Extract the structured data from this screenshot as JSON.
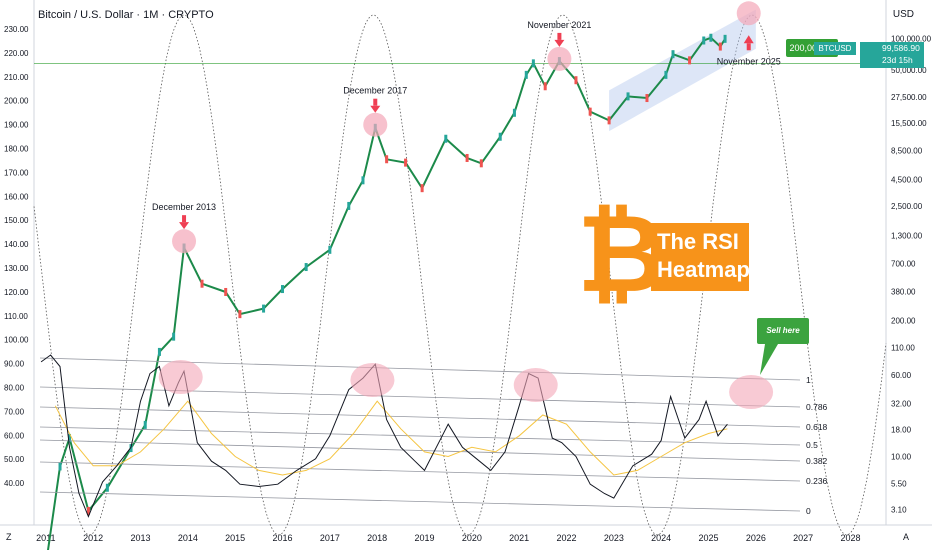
{
  "header": {
    "title": "Bitcoin / U.S. Dollar · 1M · CRYPTO",
    "currency": "USD"
  },
  "brand": {
    "btc_symbol": "₿",
    "title_line1": "The RSI",
    "title_line2": "Heatmap",
    "orange": "#f7931a",
    "green": "#33a035",
    "teal": "#26a69a",
    "pink": "#f4a6b8",
    "red_arrow": "#ef3f53"
  },
  "price_tag": {
    "ticker": "BTCUSD",
    "price": "99,586.90",
    "countdown": "23d 15h"
  },
  "target_label": "200,000.00",
  "callout": "Sell here",
  "footer_left": "Z",
  "footer_right": "A",
  "chart_data": {
    "type": "line",
    "title": "Bitcoin / U.S. Dollar · 1M · CRYPTO",
    "x_ticks": [
      "2011",
      "2012",
      "2013",
      "2014",
      "2015",
      "2016",
      "2017",
      "2018",
      "2019",
      "2020",
      "2021",
      "2022",
      "2023",
      "2024",
      "2025",
      "2026",
      "2027",
      "2028"
    ],
    "left_axis_ticks": [
      "230.00",
      "220.00",
      "210.00",
      "200.00",
      "190.00",
      "180.00",
      "170.00",
      "160.00",
      "150.00",
      "140.00",
      "130.00",
      "120.00",
      "110.00",
      "100.00",
      "90.00",
      "80.00",
      "70.00",
      "60.00",
      "50.00",
      "40.00"
    ],
    "right_axis_ticks": [
      "100,000.00",
      "50,000.00",
      "27,500.00",
      "15,500.00",
      "8,500.00",
      "4,500.00",
      "2,500.00",
      "1,300.00",
      "700.00",
      "380.00",
      "200.00",
      "110.00",
      "60.00",
      "32.00",
      "18.00",
      "10.00",
      "5.50",
      "3.10"
    ],
    "scale": "log",
    "price_series": {
      "name": "BTCUSD",
      "x": [
        2011.0,
        2011.3,
        2011.5,
        2011.9,
        2012.3,
        2012.8,
        2013.1,
        2013.4,
        2013.7,
        2013.92,
        2014.3,
        2014.8,
        2015.1,
        2015.6,
        2016.0,
        2016.5,
        2017.0,
        2017.4,
        2017.7,
        2017.96,
        2018.2,
        2018.6,
        2018.95,
        2019.45,
        2019.9,
        2020.2,
        2020.6,
        2020.9,
        2021.15,
        2021.3,
        2021.55,
        2021.85,
        2022.2,
        2022.5,
        2022.9,
        2023.3,
        2023.7,
        2024.1,
        2024.25,
        2024.6,
        2024.9,
        2025.05,
        2025.25,
        2025.35
      ],
      "y": [
        0.9,
        8,
        15,
        3,
        5,
        12,
        20,
        100,
        140,
        1000,
        450,
        375,
        230,
        260,
        400,
        650,
        950,
        2500,
        4400,
        14000,
        7000,
        6500,
        3700,
        11000,
        7200,
        6400,
        11500,
        19500,
        45000,
        58000,
        35000,
        61000,
        40000,
        20000,
        16500,
        28000,
        27000,
        45000,
        71000,
        62000,
        96000,
        102000,
        84000,
        99586.9
      ]
    },
    "rsi_levels": [
      {
        "label": "1"
      },
      {
        "label": "0.786"
      },
      {
        "label": "0.618"
      },
      {
        "label": "0.5"
      },
      {
        "label": "0.382"
      },
      {
        "label": "0.236"
      },
      {
        "label": "0"
      }
    ],
    "rsi_series": {
      "x": [
        2010.9,
        2011.1,
        2011.3,
        2011.5,
        2011.7,
        2011.9,
        2012.2,
        2012.5,
        2012.8,
        2013.0,
        2013.2,
        2013.4,
        2013.6,
        2013.8,
        2013.92,
        2014.2,
        2014.5,
        2014.8,
        2015.1,
        2015.5,
        2015.9,
        2016.3,
        2016.7,
        2017.0,
        2017.4,
        2017.7,
        2017.96,
        2018.2,
        2018.5,
        2018.8,
        2019.0,
        2019.3,
        2019.5,
        2019.8,
        2020.1,
        2020.4,
        2020.7,
        2021.0,
        2021.2,
        2021.4,
        2021.7,
        2021.9,
        2022.2,
        2022.5,
        2022.8,
        2023.0,
        2023.4,
        2023.8,
        2024.0,
        2024.2,
        2024.5,
        2024.8,
        2024.95,
        2025.2,
        2025.4
      ],
      "y": [
        97,
        100,
        95,
        60,
        40,
        30,
        45,
        52,
        60,
        80,
        92,
        95,
        78,
        88,
        93,
        62,
        54,
        50,
        44,
        43,
        44,
        50,
        55,
        65,
        85,
        90,
        96,
        72,
        60,
        54,
        50,
        62,
        70,
        60,
        55,
        50,
        58,
        78,
        92,
        90,
        64,
        62,
        56,
        44,
        40,
        38,
        52,
        57,
        63,
        82,
        64,
        72,
        80,
        65,
        70
      ]
    },
    "rsi_ma_series": {
      "x": [
        2011.2,
        2011.6,
        2012.0,
        2012.5,
        2013.0,
        2013.5,
        2014.0,
        2014.5,
        2015.0,
        2015.5,
        2016.0,
        2016.5,
        2017.0,
        2017.5,
        2018.0,
        2018.5,
        2019.0,
        2019.5,
        2020.0,
        2020.5,
        2021.0,
        2021.5,
        2022.0,
        2022.5,
        2023.0,
        2023.5,
        2024.0,
        2024.5,
        2025.0,
        2025.4
      ],
      "y": [
        78,
        62,
        52,
        52,
        58,
        68,
        80,
        66,
        56,
        50,
        48,
        50,
        55,
        66,
        80,
        68,
        58,
        56,
        60,
        58,
        65,
        74,
        70,
        58,
        48,
        50,
        56,
        62,
        66,
        68
      ]
    },
    "cycle_peaks": [
      {
        "label": "December 2013",
        "year": 2013.92
      },
      {
        "label": "December 2017",
        "year": 2017.96
      },
      {
        "label": "November 2021",
        "year": 2021.85
      },
      {
        "label": "November 2025",
        "year": 2025.85
      }
    ]
  }
}
